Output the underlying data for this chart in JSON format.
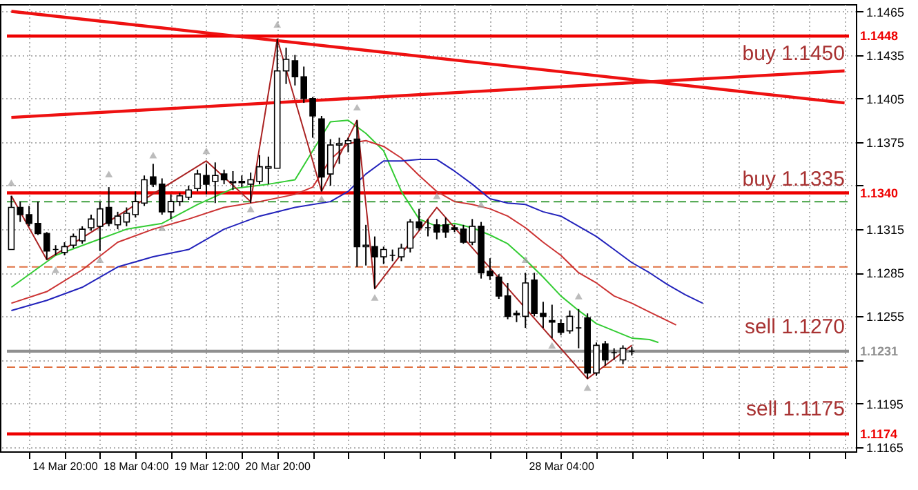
{
  "chart_data": {
    "type": "candlestick",
    "categories": [
      null,
      null,
      null,
      null,
      null,
      null,
      "14 Mar 20:00",
      null,
      null,
      null,
      null,
      null,
      null,
      null,
      "18 Mar 04:00",
      null,
      null,
      null,
      null,
      null,
      null,
      null,
      "19 Mar 12:00",
      null,
      null,
      null,
      null,
      null,
      null,
      null,
      "20 Mar 20:00",
      null,
      null,
      null,
      null,
      null,
      null,
      null,
      null,
      null,
      null,
      null,
      null,
      null,
      null,
      null,
      null,
      null,
      null,
      null,
      null,
      null,
      null,
      null,
      null,
      null,
      null,
      null,
      null,
      null,
      null,
      null,
      "28 Mar 04:00",
      null,
      null,
      null,
      null,
      null,
      null,
      null,
      null,
      null,
      null,
      null,
      null,
      null,
      null,
      null,
      null,
      null,
      null,
      null,
      null,
      null,
      null,
      null,
      null,
      null,
      null,
      null,
      null,
      null,
      null,
      null,
      null
    ],
    "ohlc": [
      [
        1.1301,
        1.1338,
        1.1301,
        1.133
      ],
      [
        1.133,
        1.1334,
        1.132,
        1.1325
      ],
      [
        1.1325,
        1.1331,
        1.1317,
        1.1319
      ],
      [
        1.1319,
        1.1334,
        1.1311,
        1.1312
      ],
      [
        1.1312,
        1.1313,
        1.1294,
        1.13
      ],
      [
        1.1301,
        1.1304,
        1.1297,
        1.1301
      ],
      [
        1.1299,
        1.1306,
        1.1297,
        1.1303
      ],
      [
        1.1304,
        1.1312,
        1.1302,
        1.131
      ],
      [
        1.1307,
        1.1317,
        1.1305,
        1.1315
      ],
      [
        1.1316,
        1.1325,
        1.1314,
        1.1322
      ],
      [
        1.1317,
        1.1334,
        1.13,
        1.1329
      ],
      [
        1.133,
        1.1344,
        1.1317,
        1.1319
      ],
      [
        1.1318,
        1.1327,
        1.1315,
        1.1324
      ],
      [
        1.132,
        1.133,
        1.1317,
        1.1326
      ],
      [
        1.1325,
        1.1341,
        1.1323,
        1.1334
      ],
      [
        1.1333,
        1.1352,
        1.1331,
        1.1349
      ],
      [
        1.1351,
        1.136,
        1.1344,
        1.1346
      ],
      [
        1.1346,
        1.135,
        1.1325,
        1.1327
      ],
      [
        1.1327,
        1.1339,
        1.1322,
        1.1334
      ],
      [
        1.1334,
        1.134,
        1.1331,
        1.1338
      ],
      [
        1.1337,
        1.1345,
        1.1335,
        1.1342
      ],
      [
        1.1343,
        1.1356,
        1.1341,
        1.1353
      ],
      [
        1.1352,
        1.136,
        1.1339,
        1.1346
      ],
      [
        1.1348,
        1.1361,
        1.1333,
        1.1352
      ],
      [
        1.1353,
        1.1356,
        1.1346,
        1.1349
      ],
      [
        1.1347,
        1.1355,
        1.1342,
        1.1348
      ],
      [
        1.1348,
        1.1352,
        1.1344,
        1.1347
      ],
      [
        1.1346,
        1.1354,
        1.1333,
        1.1349
      ],
      [
        1.1348,
        1.1366,
        1.1346,
        1.1358
      ],
      [
        1.1357,
        1.1365,
        1.1346,
        1.1358
      ],
      [
        1.1357,
        1.1446,
        1.1357,
        1.1424
      ],
      [
        1.1424,
        1.144,
        1.1415,
        1.1432
      ],
      [
        1.1431,
        1.1435,
        1.1414,
        1.142
      ],
      [
        1.142,
        1.1427,
        1.1402,
        1.1405
      ],
      [
        1.1405,
        1.1406,
        1.1378,
        1.1393
      ],
      [
        1.1391,
        1.1393,
        1.1341,
        1.1351
      ],
      [
        1.1353,
        1.1377,
        1.1345,
        1.1373
      ],
      [
        1.1373,
        1.1378,
        1.136,
        1.1374
      ],
      [
        1.1374,
        1.1378,
        1.1368,
        1.1376
      ],
      [
        1.1377,
        1.139,
        1.1289,
        1.1303
      ],
      [
        1.1303,
        1.1318,
        1.129,
        1.1304
      ],
      [
        1.1303,
        1.131,
        1.1274,
        1.1296
      ],
      [
        1.1296,
        1.1303,
        1.1291,
        1.1301
      ],
      [
        1.1297,
        1.1301,
        1.1293,
        1.1297
      ],
      [
        1.1296,
        1.1305,
        1.1293,
        1.1302
      ],
      [
        1.1302,
        1.1322,
        1.1299,
        1.132
      ],
      [
        1.132,
        1.1329,
        1.1314,
        1.1316
      ],
      [
        1.1316,
        1.1322,
        1.131,
        1.1316
      ],
      [
        1.1318,
        1.1322,
        1.1308,
        1.1313
      ],
      [
        1.1318,
        1.1323,
        1.1309,
        1.1313
      ],
      [
        1.1316,
        1.1318,
        1.1313,
        1.1315
      ],
      [
        1.1315,
        1.1318,
        1.1305,
        1.1306
      ],
      [
        1.1306,
        1.1322,
        1.1304,
        1.1317
      ],
      [
        1.1317,
        1.132,
        1.1281,
        1.1285
      ],
      [
        1.1286,
        1.1295,
        1.128,
        1.1283
      ],
      [
        1.1282,
        1.1284,
        1.1267,
        1.1269
      ],
      [
        1.1269,
        1.1278,
        1.1253,
        1.1255
      ],
      [
        1.1257,
        1.1259,
        1.1251,
        1.1256
      ],
      [
        1.1255,
        1.1285,
        1.1247,
        1.1278
      ],
      [
        1.128,
        1.1285,
        1.1255,
        1.1257
      ],
      [
        1.1257,
        1.1265,
        1.1247,
        1.1255
      ],
      [
        1.1252,
        1.1263,
        1.124,
        1.1251
      ],
      [
        1.125,
        1.1253,
        1.1242,
        1.1244
      ],
      [
        1.1245,
        1.1259,
        1.1243,
        1.1255
      ],
      [
        1.1247,
        1.126,
        1.1233,
        1.1247
      ],
      [
        1.1254,
        1.1257,
        1.1212,
        1.1216
      ],
      [
        1.1216,
        1.1237,
        1.1214,
        1.1235
      ],
      [
        1.1236,
        1.1238,
        1.1221,
        1.1225
      ],
      [
        1.123,
        1.1233,
        1.1225,
        1.123
      ],
      [
        1.1225,
        1.1235,
        1.1222,
        1.1233
      ],
      [
        1.1231,
        1.1234,
        1.1228,
        1.1231
      ],
      null,
      null,
      null,
      null,
      null,
      null,
      null,
      null,
      null,
      null,
      null,
      null,
      null,
      null,
      null,
      null,
      null,
      null,
      null,
      null,
      null,
      null,
      null,
      null
    ],
    "series": [
      {
        "type": "line",
        "color": "#33cc33",
        "values": [
          1.1275,
          null,
          null,
          null,
          null,
          1.1297,
          null,
          null,
          null,
          1.1306,
          null,
          null,
          null,
          1.1315,
          null,
          null,
          null,
          1.1319,
          null,
          null,
          null,
          1.1332,
          null,
          null,
          null,
          1.1343,
          null,
          null,
          null,
          1.1346,
          null,
          null,
          1.1349,
          null,
          1.1369,
          null,
          1.1389,
          null,
          1.139,
          null,
          1.1381,
          null,
          1.1369,
          null,
          1.1341,
          null,
          1.1322,
          null,
          1.1317,
          null,
          1.1319,
          null,
          1.1316,
          null,
          1.1311,
          null,
          1.1305,
          null,
          1.1294,
          null,
          1.1282,
          null,
          1.1269,
          null,
          1.1259,
          null,
          1.125,
          null,
          1.1245,
          null,
          1.124,
          null,
          1.1239,
          1.1237,
          null,
          null,
          null,
          null,
          null,
          null,
          null,
          null,
          null,
          null,
          null,
          null,
          null,
          null,
          null,
          null,
          null,
          null,
          null,
          null,
          null
        ]
      },
      {
        "type": "line",
        "color": "#cc3333",
        "values": [
          1.1264,
          null,
          null,
          null,
          1.1272,
          null,
          null,
          null,
          1.1287,
          null,
          null,
          null,
          1.1306,
          null,
          null,
          null,
          1.1315,
          null,
          null,
          null,
          1.1322,
          null,
          null,
          null,
          1.133,
          null,
          null,
          null,
          1.1334,
          null,
          null,
          null,
          1.1339,
          null,
          1.1344,
          null,
          1.1363,
          null,
          1.1374,
          null,
          1.1376,
          null,
          1.1372,
          null,
          1.1364,
          null,
          1.1352,
          null,
          1.1341,
          null,
          1.1334,
          null,
          1.1332,
          null,
          1.1329,
          null,
          1.1324,
          null,
          1.1316,
          null,
          1.1306,
          null,
          1.1297,
          null,
          1.1285,
          null,
          1.1278,
          null,
          1.1269,
          null,
          1.1264,
          null,
          1.1258,
          null,
          null,
          1.1249,
          null,
          null,
          null,
          null,
          null,
          null,
          null,
          null,
          null,
          null,
          null,
          null,
          null,
          null,
          null,
          null,
          null,
          null,
          null
        ]
      },
      {
        "type": "line",
        "color": "#2222bb",
        "values": [
          1.1259,
          null,
          null,
          null,
          1.1266,
          null,
          null,
          null,
          1.1275,
          null,
          null,
          null,
          1.1289,
          null,
          null,
          null,
          1.1296,
          null,
          null,
          null,
          1.1301,
          null,
          null,
          null,
          1.1315,
          null,
          null,
          null,
          1.1324,
          null,
          null,
          null,
          1.133,
          null,
          null,
          null,
          1.1334,
          null,
          1.1341,
          null,
          1.1353,
          null,
          1.1362,
          null,
          1.1362,
          null,
          1.1363,
          null,
          1.1363,
          null,
          1.1355,
          null,
          1.1346,
          null,
          1.1336,
          null,
          1.1333,
          null,
          1.1332,
          null,
          1.1327,
          null,
          1.1324,
          null,
          1.1317,
          null,
          1.131,
          null,
          1.1301,
          null,
          1.1292,
          null,
          1.1285,
          null,
          1.1277,
          null,
          1.127,
          null,
          1.1264,
          null,
          null,
          null,
          null,
          null,
          null,
          null,
          null,
          null,
          null,
          null,
          null,
          null,
          null,
          null,
          null
        ]
      },
      {
        "type": "line",
        "color": "#aa2222",
        "values": [
          1.1338,
          null,
          null,
          null,
          1.1294,
          null,
          null,
          null,
          null,
          null,
          null,
          null,
          null,
          null,
          null,
          null,
          null,
          null,
          null,
          null,
          null,
          null,
          1.1362,
          null,
          null,
          null,
          null,
          1.1334,
          null,
          null,
          1.1446,
          null,
          null,
          null,
          null,
          1.1341,
          null,
          null,
          null,
          1.139,
          null,
          1.1274,
          null,
          null,
          null,
          null,
          null,
          null,
          1.133,
          null,
          null,
          null,
          null,
          null,
          null,
          null,
          null,
          null,
          null,
          null,
          null,
          null,
          null,
          null,
          null,
          1.1212,
          null,
          null,
          null,
          null,
          1.1235,
          null,
          null,
          null,
          null,
          null,
          null,
          null,
          null,
          null,
          null,
          null,
          null,
          null,
          null,
          null,
          null,
          null,
          null,
          null,
          null,
          null,
          null,
          null,
          null
        ]
      },
      {
        "type": "line",
        "color": "#ee1111",
        "values": [
          1.1465,
          null,
          null,
          null,
          null,
          null,
          null,
          null,
          null,
          null,
          null,
          null,
          null,
          null,
          null,
          null,
          null,
          null,
          null,
          null,
          null,
          null,
          null,
          null,
          null,
          null,
          null,
          null,
          null,
          null,
          null,
          null,
          null,
          null,
          null,
          null,
          null,
          null,
          null,
          null,
          null,
          null,
          null,
          null,
          null,
          null,
          null,
          null,
          null,
          null,
          null,
          null,
          null,
          null,
          null,
          null,
          null,
          null,
          null,
          null,
          null,
          null,
          null,
          null,
          null,
          null,
          null,
          null,
          null,
          null,
          null,
          null,
          null,
          null,
          null,
          null,
          null,
          null,
          null,
          null,
          null,
          null,
          null,
          null,
          null,
          null,
          null,
          null,
          null,
          null,
          null,
          null,
          null,
          null,
          1.1402
        ]
      },
      {
        "type": "line",
        "color": "#ee1111",
        "values": [
          1.1392,
          null,
          null,
          null,
          null,
          null,
          null,
          null,
          null,
          null,
          null,
          null,
          null,
          null,
          null,
          null,
          null,
          null,
          null,
          null,
          null,
          null,
          null,
          null,
          null,
          null,
          null,
          null,
          null,
          null,
          null,
          null,
          null,
          null,
          null,
          null,
          null,
          null,
          null,
          null,
          null,
          null,
          null,
          null,
          null,
          null,
          null,
          null,
          null,
          null,
          null,
          null,
          null,
          null,
          null,
          null,
          null,
          null,
          null,
          null,
          null,
          null,
          null,
          null,
          null,
          null,
          null,
          null,
          null,
          null,
          null,
          null,
          null,
          null,
          null,
          null,
          null,
          null,
          null,
          null,
          null,
          null,
          null,
          null,
          null,
          null,
          null,
          null,
          null,
          null,
          null,
          null,
          null,
          null,
          1.1424
        ]
      },
      {
        "type": "scatter",
        "marker": "triangle",
        "color": "#a0a0a0",
        "values": [
          1.1347,
          null,
          null,
          null,
          null,
          1.1287,
          null,
          null,
          null,
          null,
          1.1294,
          1.1353,
          null,
          null,
          null,
          null,
          1.1366,
          1.1316,
          null,
          null,
          null,
          null,
          1.1369,
          null,
          null,
          null,
          null,
          1.1329,
          null,
          null,
          1.1456,
          null,
          null,
          null,
          null,
          1.1336,
          null,
          null,
          null,
          1.1399,
          null,
          1.1268,
          null,
          null,
          null,
          null,
          null,
          null,
          1.1338,
          null,
          null,
          null,
          null,
          1.1332,
          null,
          null,
          null,
          null,
          1.1294,
          null,
          null,
          1.1235,
          null,
          null,
          1.1269,
          1.1206,
          null,
          null,
          null,
          null,
          null,
          null,
          null,
          null,
          null,
          null,
          null,
          null,
          null,
          null,
          null,
          null,
          null,
          null,
          null,
          null,
          null,
          null,
          null,
          null,
          null,
          null,
          null,
          null,
          null
        ]
      }
    ],
    "ref_lines": [
      {
        "axis": "y",
        "value": 1.1448,
        "label": "1.1448",
        "color": "#ee0000",
        "line_style": "solid"
      },
      {
        "axis": "y",
        "value": 1.134,
        "label": "1.1340",
        "color": "#ee0000",
        "line_style": "solid"
      },
      {
        "axis": "y",
        "value": 1.1174,
        "label": "1.1174",
        "color": "#ee0000",
        "line_style": "solid"
      },
      {
        "axis": "y",
        "value": 1.1231,
        "label": "1.1231",
        "color": "#909090",
        "line_style": "solid"
      },
      {
        "axis": "y",
        "value": 1.1334,
        "color": "#40a040",
        "line_style": "dashed"
      },
      {
        "axis": "y",
        "value": 1.1289,
        "color": "#e07040",
        "line_style": "dashed"
      },
      {
        "axis": "y",
        "value": 1.122,
        "color": "#e07040",
        "line_style": "dashed"
      }
    ],
    "annotations": [
      "buy 1.1450",
      "buy 1.1335",
      "sell 1.1270",
      "sell 1.1175"
    ],
    "ylim": [
      1.1162,
      1.147
    ],
    "yticks": [
      1.1465,
      1.1435,
      1.1405,
      1.1375,
      {
        "value": 1.1345,
        "label": null
      },
      1.1315,
      1.1285,
      1.1255,
      {
        "value": 1.1225,
        "label": null
      },
      1.1195,
      1.1165
    ],
    "grid": true
  }
}
